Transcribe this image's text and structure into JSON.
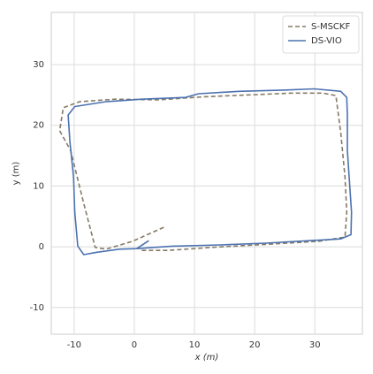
{
  "chart_data": {
    "type": "line",
    "xlabel": "x (m)",
    "ylabel": "y (m)",
    "xlim": [
      -13.8,
      37.9
    ],
    "ylim": [
      -14.4,
      38.6
    ],
    "xticks": [
      -10,
      0,
      10,
      20,
      30
    ],
    "yticks": [
      -10,
      0,
      10,
      20,
      30
    ],
    "grid": true,
    "legend": "upper right",
    "series": [
      {
        "name": "S-MSCKF",
        "color": "#857a66",
        "dashed": true,
        "x": [
          4.9,
          -0.3,
          -4.7,
          -6.5,
          -8.4,
          -10.6,
          -12.4,
          -11.8,
          -9.1,
          -3.2,
          4.1,
          11.5,
          18.8,
          26.2,
          31.3,
          33.5,
          34.3,
          35.0,
          35.3,
          35.0,
          30.6,
          21.8,
          12.9,
          5.6,
          1.2
        ],
        "values": [
          3.2,
          0.9,
          -0.4,
          -0.1,
          7.1,
          15.9,
          19.1,
          22.9,
          23.9,
          24.3,
          24.2,
          24.7,
          25.0,
          25.3,
          25.3,
          24.9,
          18.8,
          11.5,
          5.7,
          1.6,
          0.9,
          0.4,
          -0.1,
          -0.6,
          -0.6
        ]
      },
      {
        "name": "DS-VIO",
        "color": "#4c72b0",
        "dashed": false,
        "x": [
          0.4,
          6.3,
          14.4,
          21.8,
          29.1,
          34.3,
          36.0,
          36.1,
          35.8,
          35.4,
          35.4,
          35.3,
          34.3,
          29.9,
          24.7,
          17.4,
          10.7,
          8.5,
          1.2,
          -4.7,
          -9.9,
          -11.0,
          -10.7,
          -10.1,
          -9.9,
          -9.4,
          -8.4,
          -6.2,
          -2.5,
          0.4,
          2.4
        ],
        "values": [
          -0.3,
          0.1,
          0.3,
          0.6,
          1.0,
          1.3,
          2.0,
          5.7,
          10.0,
          15.9,
          21.7,
          24.6,
          25.6,
          26.0,
          25.8,
          25.6,
          25.2,
          24.6,
          24.3,
          23.9,
          23.1,
          21.7,
          17.3,
          11.5,
          5.7,
          0.1,
          -1.3,
          -0.9,
          -0.4,
          -0.3,
          1.0
        ]
      }
    ]
  }
}
